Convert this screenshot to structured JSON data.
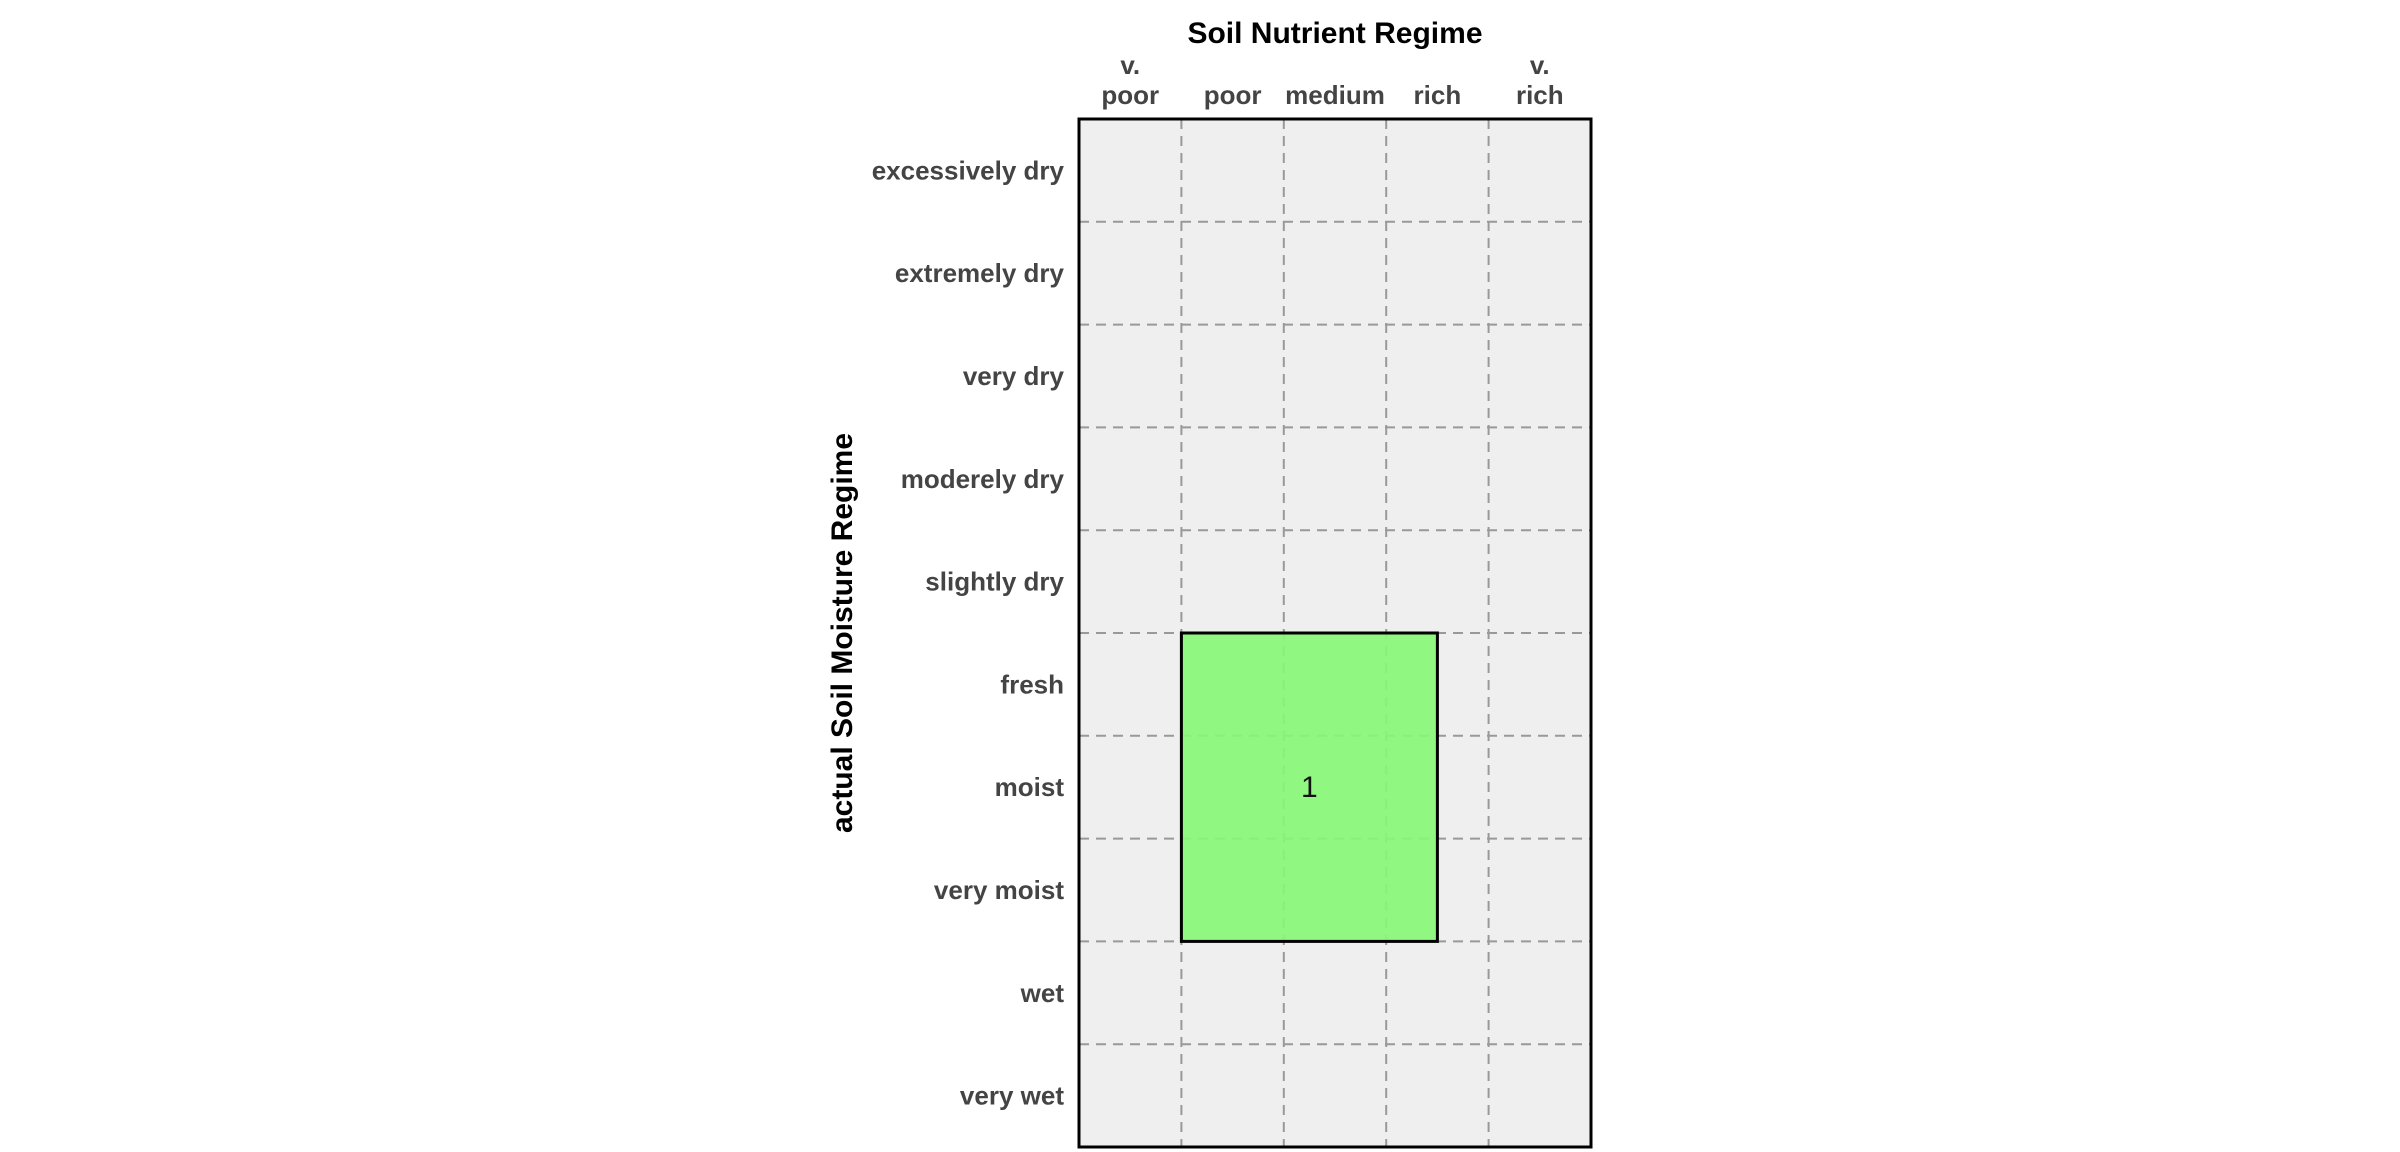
{
  "chart_data": {
    "type": "heatmap",
    "title": "Soil Nutrient Regime",
    "ylabel": "actual Soil Moisture Regime",
    "x_categories": [
      [
        "v.",
        "poor"
      ],
      [
        "poor"
      ],
      [
        "medium"
      ],
      [
        "rich"
      ],
      [
        "v.",
        "rich"
      ]
    ],
    "y_categories": [
      "excessively dry",
      "extremely dry",
      "very dry",
      "moderely dry",
      "slightly dry",
      "fresh",
      "moist",
      "very moist",
      "wet",
      "very wet"
    ],
    "grid": true,
    "background_color": "#efefef",
    "grid_color": "#999999",
    "regions": [
      {
        "label": "1",
        "color": "#88f777",
        "x_range": [
          1,
          3.5
        ],
        "y_range": [
          5,
          8
        ]
      }
    ]
  }
}
